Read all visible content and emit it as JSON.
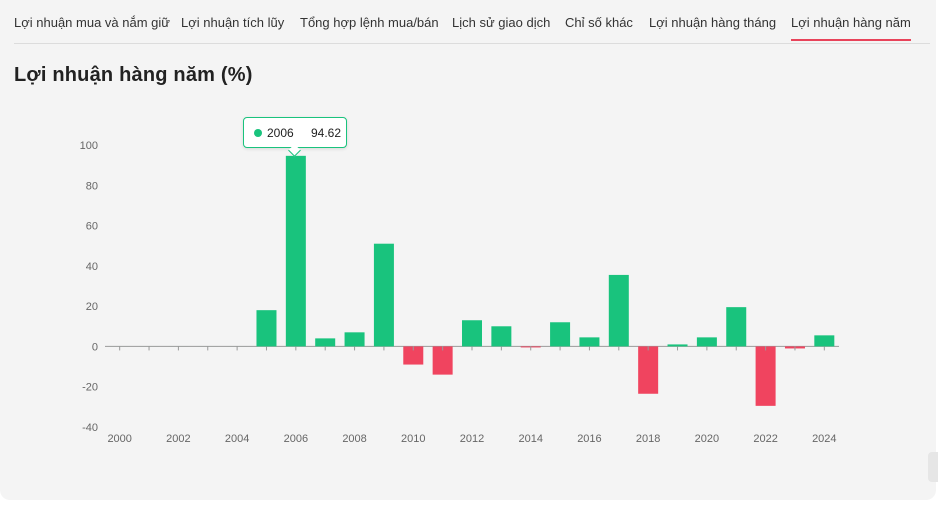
{
  "tabs": [
    {
      "label": "Lợi nhuận mua và nắm giữ"
    },
    {
      "label": "Lợi nhuận tích lũy"
    },
    {
      "label": "Tổng hợp lệnh mua/bán"
    },
    {
      "label": "Lịch sử giao dịch"
    },
    {
      "label": "Chỉ số khác"
    },
    {
      "label": "Lợi nhuận hàng tháng"
    },
    {
      "label": "Lợi nhuận hàng năm",
      "active": true
    }
  ],
  "section_title": "Lợi nhuận hàng năm (%)",
  "tooltip": {
    "year": "2006",
    "value": "94.62"
  },
  "colors": {
    "positive": "#19c37d",
    "negative": "#f0445f",
    "accent": "#e8435a"
  },
  "chart_data": {
    "type": "bar",
    "title": "Lợi nhuận hàng năm (%)",
    "x": [
      2000,
      2001,
      2002,
      2003,
      2004,
      2005,
      2006,
      2007,
      2008,
      2009,
      2010,
      2011,
      2012,
      2013,
      2014,
      2015,
      2016,
      2017,
      2018,
      2019,
      2020,
      2021,
      2022,
      2023,
      2024
    ],
    "values": [
      0,
      0,
      0,
      0,
      0,
      18,
      94.62,
      4,
      7,
      51,
      -9,
      -14,
      13,
      10,
      -0.5,
      12,
      4.5,
      35.5,
      -23.5,
      1,
      4.5,
      19.5,
      -29.5,
      -1,
      5.5
    ],
    "x_tick_labels": [
      "2000",
      "2002",
      "2004",
      "2006",
      "2008",
      "2010",
      "2012",
      "2014",
      "2016",
      "2018",
      "2020",
      "2022",
      "2024"
    ],
    "y_tick_labels": [
      "100",
      "80",
      "60",
      "40",
      "20",
      "0",
      "-20",
      "-40"
    ],
    "ylim": [
      -40,
      100
    ],
    "grid": false
  }
}
